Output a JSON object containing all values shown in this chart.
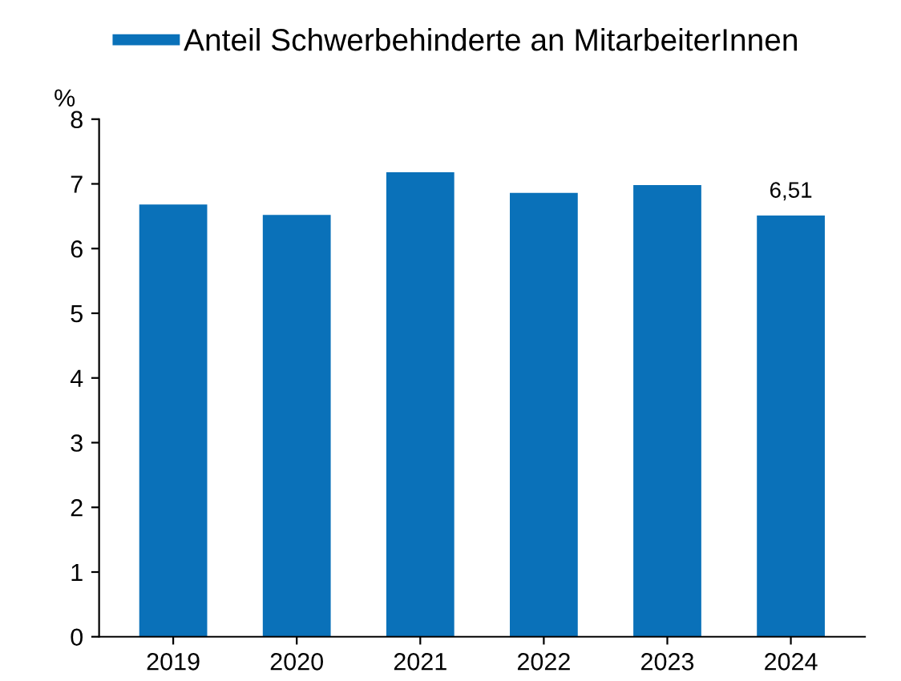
{
  "chart_data": {
    "type": "bar",
    "ylabel": "%",
    "categories": [
      "2019",
      "2020",
      "2021",
      "2022",
      "2023",
      "2024"
    ],
    "series": [
      {
        "name": "Anteil Schwerbehinderte an MitarbeiterInnen",
        "color": "#0a71b9",
        "values": [
          6.68,
          6.52,
          7.18,
          6.86,
          6.98,
          6.51
        ],
        "value_labels": [
          null,
          null,
          null,
          null,
          null,
          "6,51"
        ]
      }
    ],
    "ylim": [
      0,
      8
    ],
    "yticks": [
      0,
      1,
      2,
      3,
      4,
      5,
      6,
      7,
      8
    ],
    "grid": false,
    "legend": "top"
  }
}
